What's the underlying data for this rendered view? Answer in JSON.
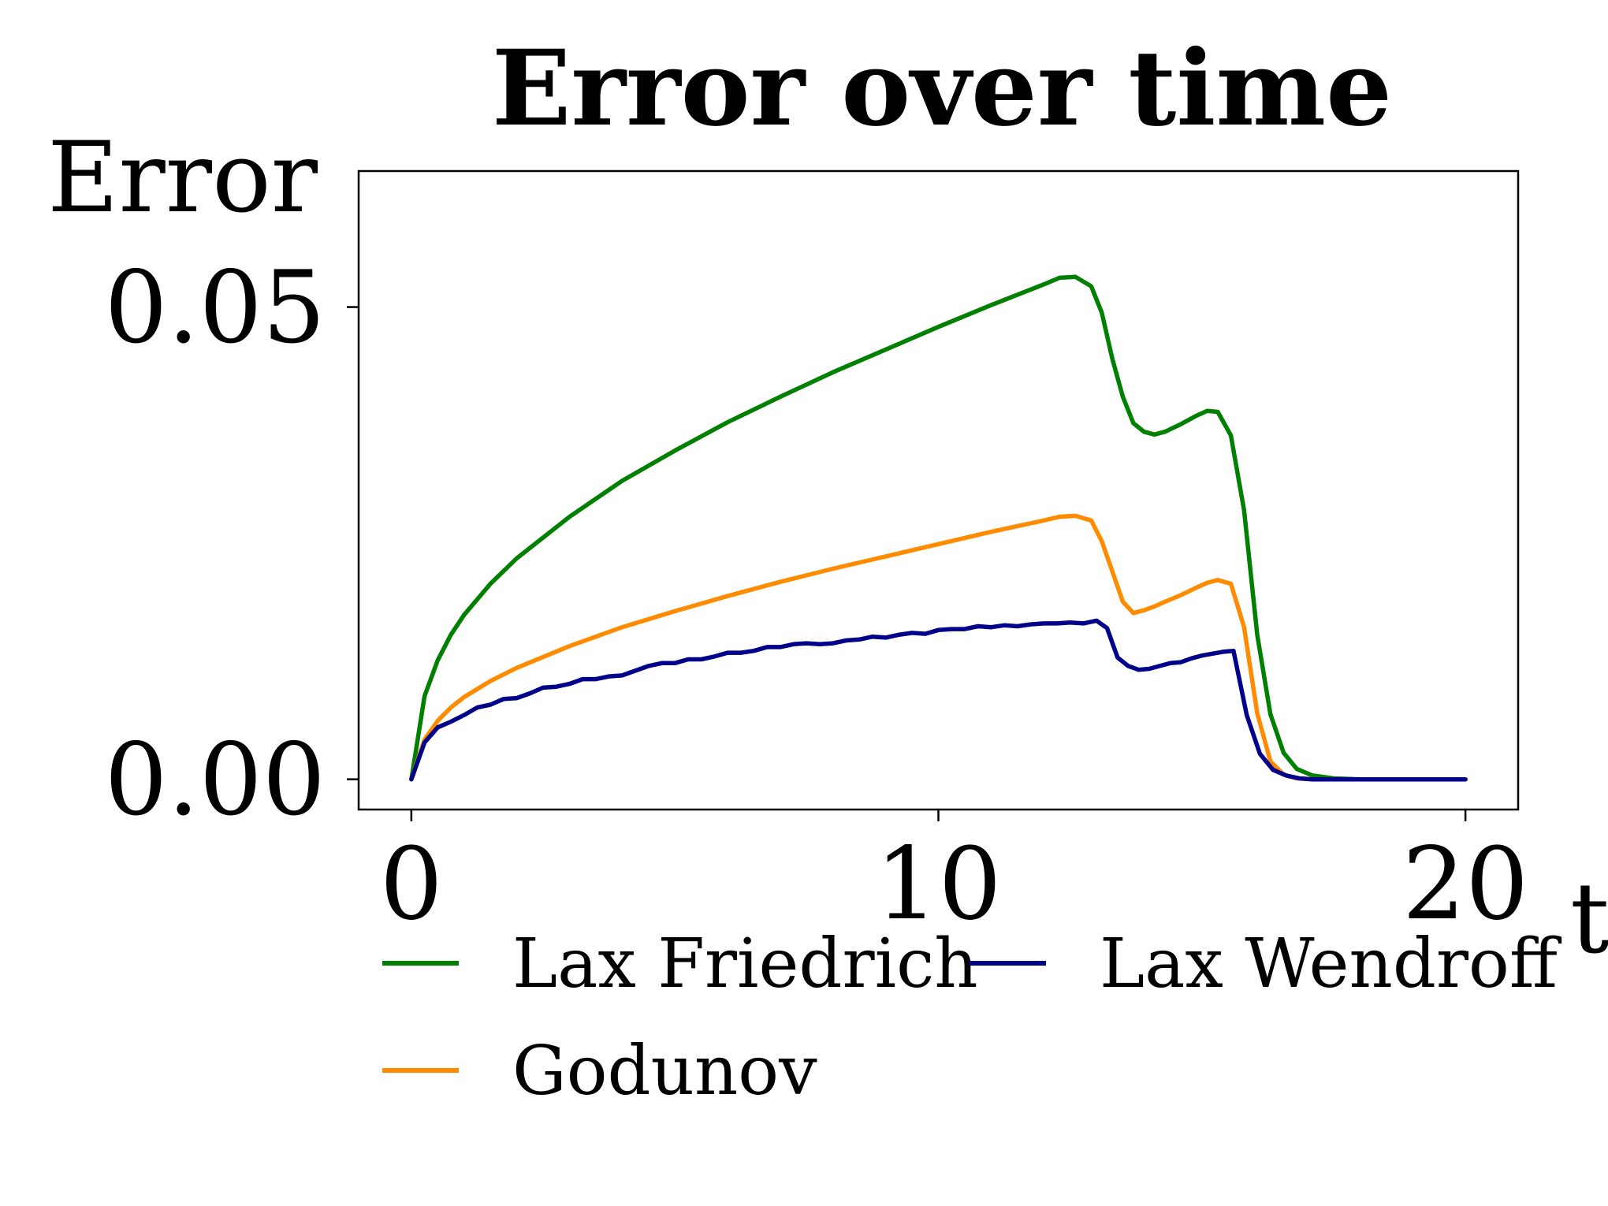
{
  "chart_data": {
    "type": "line",
    "title": "Error over time",
    "xlabel": "t",
    "ylabel": "Error",
    "xlim": [
      -1,
      21
    ],
    "ylim": [
      -0.0032,
      0.0644
    ],
    "xticks": [
      0,
      10,
      20
    ],
    "xtick_labels": [
      "0",
      "10",
      "20"
    ],
    "yticks": [
      0.0,
      0.05
    ],
    "ytick_labels": [
      "0.00",
      "0.05"
    ],
    "grid": false,
    "legend_position": "below",
    "series": [
      {
        "name": "Lax Friedrich",
        "color": "#008000",
        "x": [
          0,
          0.25,
          0.5,
          0.75,
          1,
          1.5,
          2,
          3,
          4,
          5,
          6,
          7,
          8,
          9,
          10,
          11,
          12,
          12.3,
          12.6,
          12.9,
          13.1,
          13.3,
          13.5,
          13.7,
          13.9,
          14.1,
          14.3,
          14.6,
          14.9,
          15.1,
          15.3,
          15.55,
          15.8,
          16.05,
          16.3,
          16.55,
          16.8,
          17.1,
          17.5,
          18,
          19,
          20
        ],
        "y": [
          0,
          0.0088,
          0.0126,
          0.0153,
          0.0174,
          0.0207,
          0.0234,
          0.0278,
          0.0316,
          0.0348,
          0.0378,
          0.0405,
          0.0431,
          0.0455,
          0.0479,
          0.0502,
          0.0524,
          0.0531,
          0.0532,
          0.0522,
          0.0494,
          0.0445,
          0.0405,
          0.0377,
          0.0368,
          0.0365,
          0.0368,
          0.0376,
          0.0385,
          0.039,
          0.0389,
          0.0364,
          0.0285,
          0.0153,
          0.0069,
          0.0028,
          0.0011,
          0.0004,
          0.0001,
          0,
          0,
          0
        ]
      },
      {
        "name": "Godunov",
        "color": "#ff8c00",
        "x": [
          0,
          0.25,
          0.5,
          0.75,
          1,
          1.5,
          2,
          3,
          4,
          5,
          6,
          7,
          8,
          9,
          10,
          11,
          12,
          12.3,
          12.6,
          12.9,
          13.1,
          13.3,
          13.5,
          13.7,
          13.9,
          14.1,
          14.3,
          14.6,
          14.9,
          15.1,
          15.3,
          15.55,
          15.8,
          16.05,
          16.3,
          16.55,
          16.8,
          17.1,
          17.5,
          18,
          19,
          20
        ],
        "y": [
          0,
          0.0042,
          0.0062,
          0.0076,
          0.0087,
          0.0104,
          0.0118,
          0.0141,
          0.0161,
          0.0178,
          0.0194,
          0.0209,
          0.0223,
          0.0236,
          0.0249,
          0.0262,
          0.0274,
          0.0278,
          0.0279,
          0.0274,
          0.0252,
          0.022,
          0.0188,
          0.0176,
          0.0179,
          0.0183,
          0.0188,
          0.0195,
          0.0203,
          0.0208,
          0.0211,
          0.0207,
          0.0161,
          0.007,
          0.0019,
          0.0005,
          0.0001,
          0,
          0,
          0,
          0,
          0
        ]
      },
      {
        "name": "Lax Wendroff",
        "color": "#00008b",
        "x": [
          0,
          0.25,
          0.5,
          0.75,
          1,
          1.25,
          1.5,
          1.75,
          2,
          2.25,
          2.5,
          2.75,
          3,
          3.25,
          3.5,
          3.75,
          4,
          4.25,
          4.5,
          4.75,
          5,
          5.25,
          5.5,
          5.75,
          6,
          6.25,
          6.5,
          6.75,
          7,
          7.25,
          7.5,
          7.75,
          8,
          8.25,
          8.5,
          8.75,
          9,
          9.25,
          9.5,
          9.75,
          10,
          10.25,
          10.5,
          10.75,
          11,
          11.25,
          11.5,
          11.75,
          12,
          12.25,
          12.5,
          12.75,
          13,
          13.2,
          13.4,
          13.6,
          13.8,
          14,
          14.2,
          14.4,
          14.6,
          14.8,
          15,
          15.2,
          15.4,
          15.6,
          15.85,
          16.1,
          16.35,
          16.6,
          16.85,
          17.1,
          17.5,
          18,
          19,
          20
        ],
        "y": [
          0,
          0.0039,
          0.0055,
          0.0061,
          0.0068,
          0.0076,
          0.0079,
          0.0085,
          0.0086,
          0.0091,
          0.0097,
          0.0098,
          0.0101,
          0.0106,
          0.0106,
          0.0109,
          0.011,
          0.0115,
          0.012,
          0.0123,
          0.0123,
          0.0127,
          0.0127,
          0.013,
          0.0134,
          0.0134,
          0.0136,
          0.014,
          0.014,
          0.0143,
          0.0144,
          0.0143,
          0.0144,
          0.0147,
          0.0148,
          0.0151,
          0.015,
          0.0153,
          0.0155,
          0.0154,
          0.0158,
          0.0159,
          0.0159,
          0.0162,
          0.0161,
          0.0163,
          0.0162,
          0.0164,
          0.0165,
          0.0165,
          0.0166,
          0.0165,
          0.0168,
          0.016,
          0.0129,
          0.012,
          0.0116,
          0.0117,
          0.012,
          0.0123,
          0.0124,
          0.0128,
          0.0131,
          0.0133,
          0.0135,
          0.0136,
          0.0068,
          0.0027,
          0.001,
          0.0004,
          0.0001,
          0,
          0,
          0,
          0,
          0
        ]
      }
    ]
  }
}
